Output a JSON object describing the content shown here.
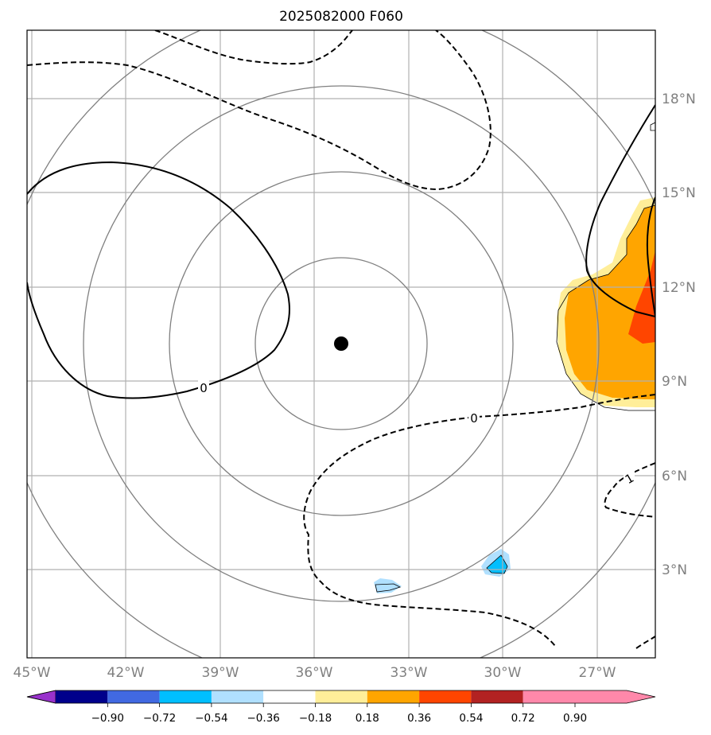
{
  "title": "2025082000 F060",
  "map": {
    "lat_labels": [
      "18°N",
      "15°N",
      "12°N",
      "9°N",
      "6°N",
      "3°N"
    ],
    "lon_labels": [
      "45°W",
      "42°W",
      "39°W",
      "36°W",
      "33°W",
      "30°W",
      "27°W"
    ],
    "contour_labels": [
      "0",
      "0",
      "1"
    ],
    "center_marker": "storm-center"
  },
  "colorbar": {
    "ticks": [
      "−0.90",
      "−0.72",
      "−0.54",
      "−0.36",
      "−0.18",
      "0.18",
      "0.36",
      "0.54",
      "0.72",
      "0.90"
    ],
    "colors": [
      "#9932cc",
      "#00008b",
      "#4169e1",
      "#00bfff",
      "#b0e0ff",
      "#ffffff",
      "#ffee99",
      "#ffa500",
      "#ff4500",
      "#b22222",
      "#ff88aa"
    ]
  }
}
